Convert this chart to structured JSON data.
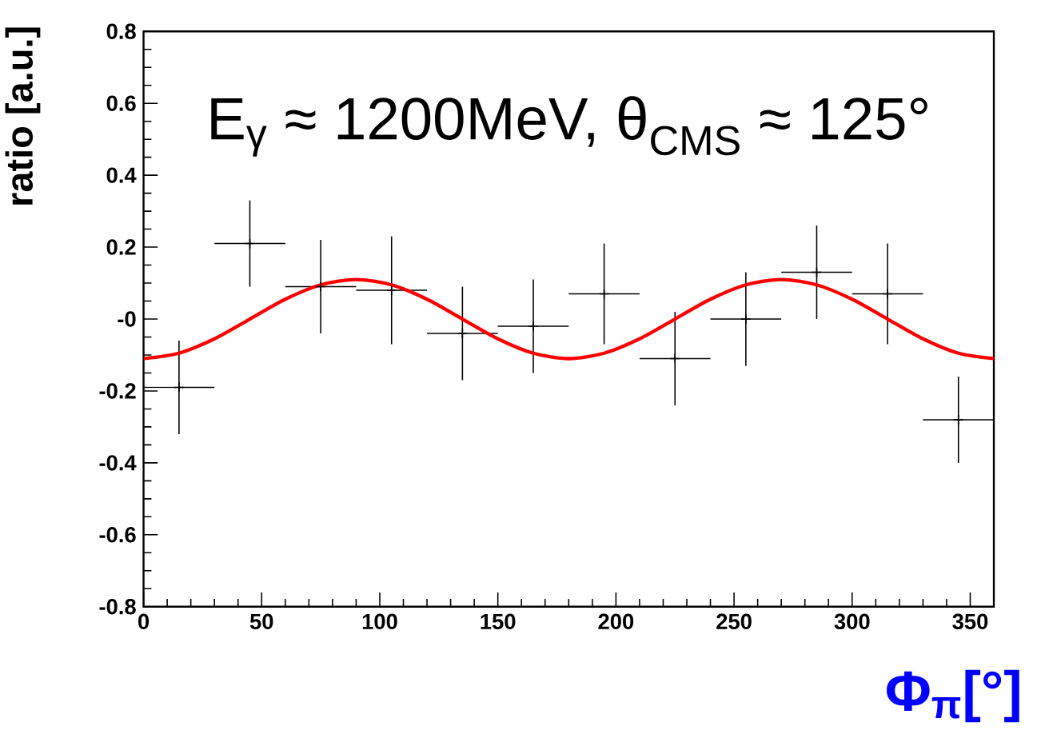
{
  "chart_data": {
    "type": "scatter",
    "xlabel": "Φ$_{π}$[°]",
    "ylabel": "ratio [a.u.]",
    "annotations": [
      "E$_{γ}$ ≈ 1200MeV, θ$_{CMS}$ ≈ 125°"
    ],
    "xlim": [
      0,
      360
    ],
    "xticks": [
      0,
      50,
      100,
      150,
      200,
      250,
      300,
      350
    ],
    "ylim": [
      -0.8,
      0.8
    ],
    "yticks": [
      -0.8,
      -0.6,
      -0.4,
      -0.2,
      {
        "value": 0,
        "label": "-0"
      },
      0.2,
      0.4,
      0.6,
      0.8
    ],
    "grid": false,
    "series": [
      {
        "color": "#000000",
        "x": [
          15,
          45,
          75,
          105,
          135,
          165,
          195,
          225,
          255,
          285,
          315,
          345
        ],
        "values": [
          -0.19,
          0.21,
          0.09,
          0.08,
          -0.04,
          -0.02,
          0.07,
          -0.11,
          0,
          0.13,
          0.07,
          -0.28
        ],
        "errors": [
          0.13,
          0.12,
          0.13,
          0.15,
          0.13,
          0.13,
          0.14,
          0.13,
          0.13,
          0.13,
          0.14,
          0.12
        ],
        "xerrors": [
          15,
          15,
          15,
          15,
          15,
          15,
          15,
          15,
          15,
          15,
          15,
          15
        ]
      },
      {
        "type": "line",
        "color": "#ff0000",
        "line_style": "solid",
        "marker": "none",
        "x": [
          0,
          15,
          30,
          45,
          60,
          75,
          90,
          105,
          120,
          135,
          150,
          165,
          180,
          195,
          210,
          225,
          240,
          255,
          270,
          285,
          300,
          315,
          330,
          345,
          360
        ],
        "values": [
          -0.11,
          -0.095,
          -0.055,
          0,
          0.055,
          0.095,
          0.11,
          0.095,
          0.055,
          0,
          -0.055,
          -0.095,
          -0.11,
          -0.095,
          -0.055,
          0,
          0.055,
          0.095,
          0.11,
          0.095,
          0.055,
          0,
          -0.055,
          -0.095,
          -0.11
        ]
      }
    ]
  }
}
